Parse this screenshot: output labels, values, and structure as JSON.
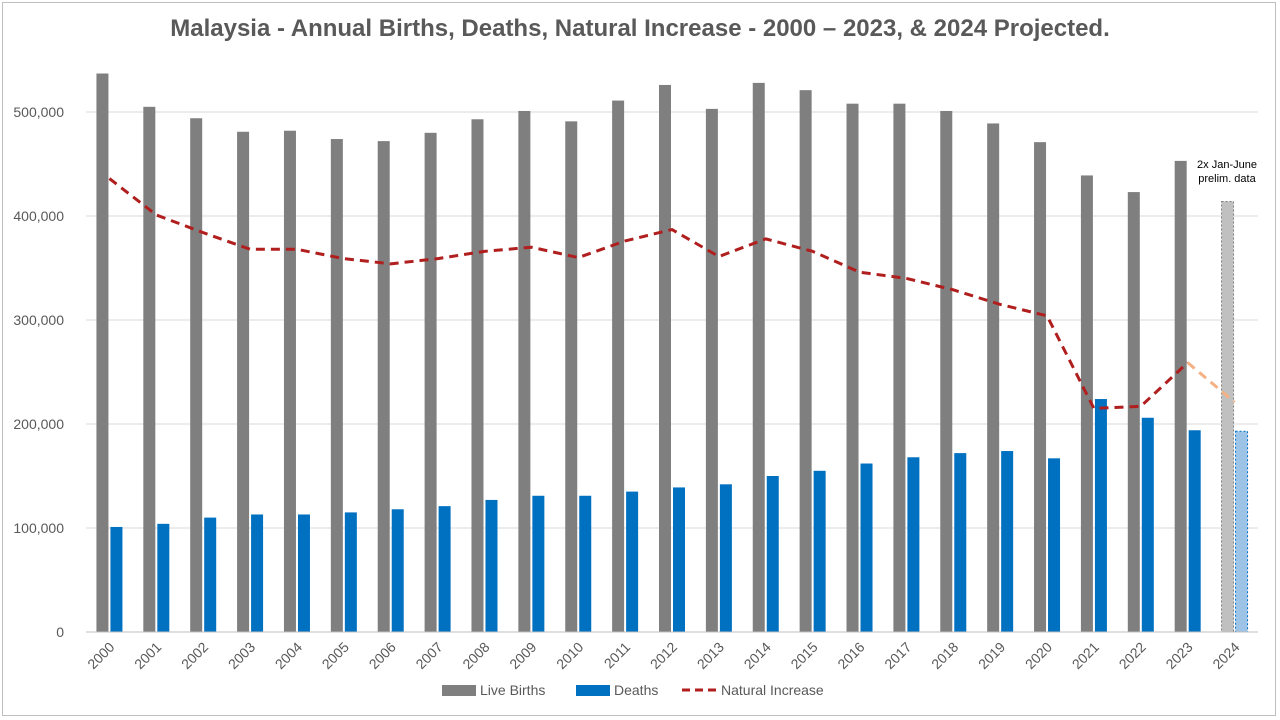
{
  "chart_data": {
    "type": "bar",
    "title": "Malaysia - Annual Births, Deaths, Natural Increase - 2000 – 2023, & 2024 Projected.",
    "categories": [
      "2000",
      "2001",
      "2002",
      "2003",
      "2004",
      "2005",
      "2006",
      "2007",
      "2008",
      "2009",
      "2010",
      "2011",
      "2012",
      "2013",
      "2014",
      "2015",
      "2016",
      "2017",
      "2018",
      "2019",
      "2020",
      "2021",
      "2022",
      "2023",
      "2024"
    ],
    "ylim": [
      0,
      550000
    ],
    "yticks": [
      0,
      100000,
      200000,
      300000,
      400000,
      500000
    ],
    "ytick_labels": [
      "0",
      "100,000",
      "200,000",
      "300,000",
      "400,000",
      "500,000"
    ],
    "grid": true,
    "legend_position": "bottom",
    "projected_category": "2024",
    "series": [
      {
        "name": "Live Births",
        "type": "bar",
        "color": "#7f7f7f",
        "projected_color": "#c0c0c0",
        "values": [
          537000,
          505000,
          494000,
          481000,
          482000,
          474000,
          472000,
          480000,
          493000,
          501000,
          491000,
          511000,
          526000,
          503000,
          528000,
          521000,
          508000,
          508000,
          501000,
          489000,
          471000,
          439000,
          423000,
          453000,
          414000
        ]
      },
      {
        "name": "Deaths",
        "type": "bar",
        "color": "#0070c0",
        "projected_color": "#9dc3e6",
        "values": [
          101000,
          104000,
          110000,
          113000,
          113000,
          115000,
          118000,
          121000,
          127000,
          131000,
          131000,
          135000,
          139000,
          142000,
          150000,
          155000,
          162000,
          168000,
          172000,
          174000,
          167000,
          224000,
          206000,
          194000,
          193000
        ]
      },
      {
        "name": "Natural Increase",
        "type": "line",
        "style": "dashed",
        "color": "#b01e1e",
        "projected_color": "#f4b183",
        "values": [
          436000,
          401000,
          384000,
          368000,
          368000,
          359000,
          354000,
          359000,
          366000,
          370000,
          360000,
          376000,
          387000,
          361000,
          378000,
          366000,
          346000,
          340000,
          329000,
          315000,
          304000,
          215000,
          217000,
          259000,
          221000
        ]
      }
    ],
    "annotation": {
      "text_line1": "2x Jan-June",
      "text_line2": "prelim. data",
      "category": "2024"
    }
  }
}
